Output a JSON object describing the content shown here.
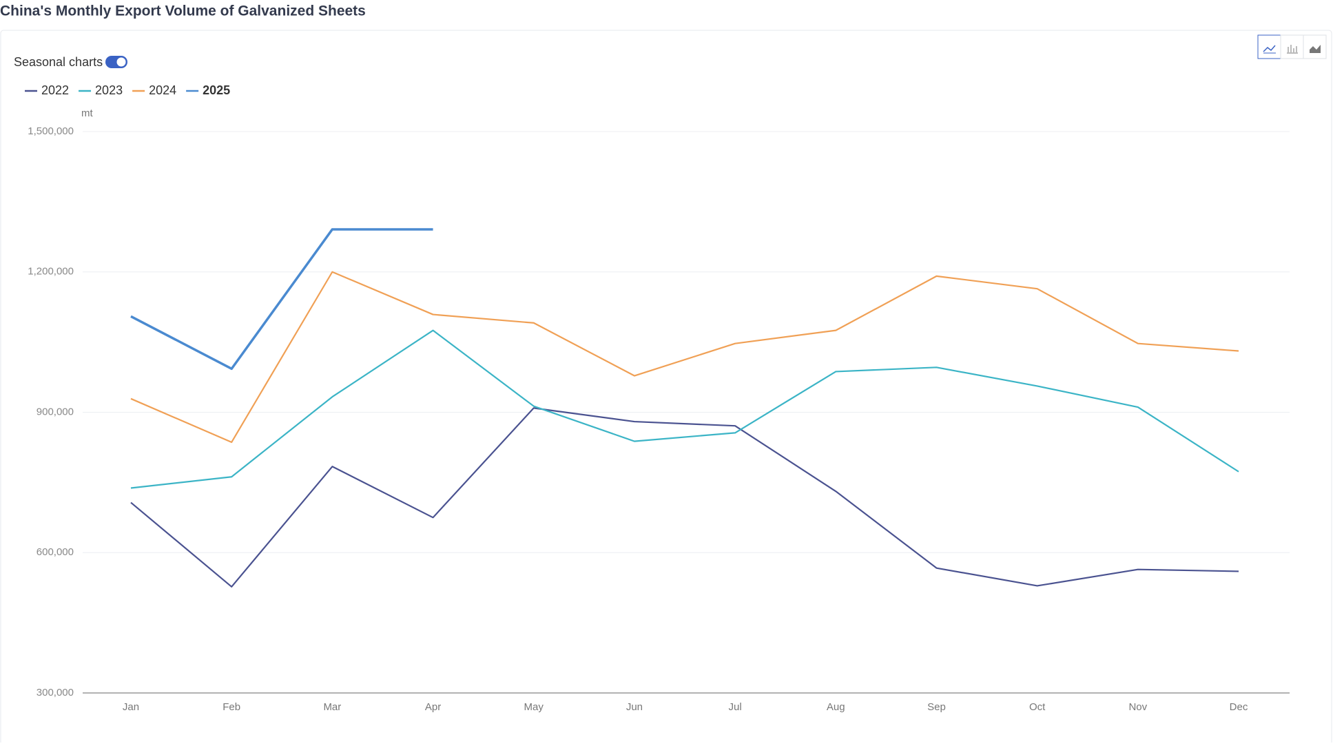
{
  "chart_data": {
    "type": "line",
    "title": "China's Monthly Export Volume of Galvanized Sheets",
    "toggle_label": "Seasonal charts",
    "y_unit": "mt",
    "categories": [
      "Jan",
      "Feb",
      "Mar",
      "Apr",
      "May",
      "Jun",
      "Jul",
      "Aug",
      "Sep",
      "Oct",
      "Nov",
      "Dec"
    ],
    "series": [
      {
        "name": "2022",
        "color": "#4a5290",
        "values": [
          707000,
          527000,
          784000,
          675000,
          909000,
          880000,
          871000,
          731000,
          567000,
          529000,
          564000,
          560000
        ]
      },
      {
        "name": "2023",
        "color": "#3bb4c6",
        "values": [
          738000,
          762000,
          933000,
          1075000,
          913000,
          838000,
          856000,
          987000,
          996000,
          956000,
          911000,
          773000
        ]
      },
      {
        "name": "2024",
        "color": "#f0a055",
        "values": [
          929000,
          836000,
          1200000,
          1109000,
          1091000,
          978000,
          1047000,
          1075000,
          1191000,
          1164000,
          1047000,
          1031000
        ]
      },
      {
        "name": "2025",
        "color": "#4a8ad0",
        "values": [
          1105000,
          993000,
          1291000,
          1291000,
          null,
          null,
          null,
          null,
          null,
          null,
          null,
          null
        ]
      }
    ],
    "ylim": [
      300000,
      1500000
    ],
    "yticks": [
      {
        "value": 300000,
        "label": "300,000"
      },
      {
        "value": 600000,
        "label": "600,000"
      },
      {
        "value": 900000,
        "label": "900,000"
      },
      {
        "value": 1200000,
        "label": "1,200,000"
      },
      {
        "value": 1500000,
        "label": "1,500,000"
      }
    ],
    "grid": true
  }
}
